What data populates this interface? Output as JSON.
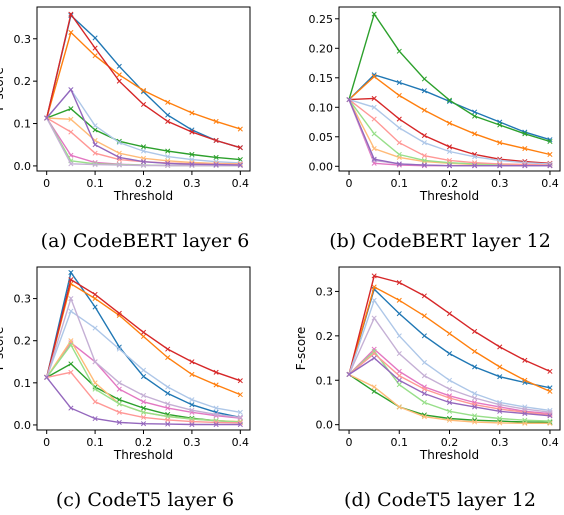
{
  "colors": [
    "#1f77b4",
    "#ff7f0e",
    "#2ca02c",
    "#d62728",
    "#e377c2",
    "#aec7e8",
    "#ffbb78",
    "#98df8a",
    "#ff9896",
    "#c5b0d5",
    "#9467bd"
  ],
  "chart_data": [
    {
      "type": "line",
      "caption": "(a) CodeBERT layer 6",
      "xlabel": "Threshold",
      "ylabel": "F-score",
      "xlim": [
        -0.02,
        0.42
      ],
      "ylim": [
        -0.012,
        0.375
      ],
      "xticks": [
        "0",
        "0.1",
        "0.2",
        "0.3",
        "0.4"
      ],
      "xtick_values": [
        0,
        0.1,
        0.2,
        0.3,
        0.4
      ],
      "yticks": [
        "0.0",
        "0.1",
        "0.2",
        "0.3"
      ],
      "ytick_values": [
        0,
        0.1,
        0.2,
        0.3
      ],
      "grid": false,
      "x": [
        0,
        0.05,
        0.1,
        0.15,
        0.2,
        0.25,
        0.3,
        0.35,
        0.4
      ],
      "series": [
        {
          "color_index": 0,
          "values": [
            0.113,
            0.355,
            0.302,
            0.235,
            0.175,
            0.12,
            0.085,
            0.06,
            0.043
          ]
        },
        {
          "color_index": 1,
          "values": [
            0.113,
            0.315,
            0.26,
            0.215,
            0.178,
            0.15,
            0.125,
            0.105,
            0.087
          ]
        },
        {
          "color_index": 2,
          "values": [
            0.113,
            0.135,
            0.085,
            0.058,
            0.045,
            0.035,
            0.027,
            0.02,
            0.015
          ]
        },
        {
          "color_index": 3,
          "values": [
            0.113,
            0.358,
            0.278,
            0.2,
            0.145,
            0.105,
            0.08,
            0.06,
            0.043
          ]
        },
        {
          "color_index": 4,
          "values": [
            0.113,
            0.025,
            0.008,
            0.004,
            0.002,
            0.001,
            0.001,
            0.001,
            0.001
          ]
        },
        {
          "color_index": 5,
          "values": [
            0.113,
            0.18,
            0.095,
            0.055,
            0.035,
            0.022,
            0.015,
            0.01,
            0.007
          ]
        },
        {
          "color_index": 6,
          "values": [
            0.113,
            0.11,
            0.06,
            0.03,
            0.018,
            0.012,
            0.008,
            0.006,
            0.005
          ]
        },
        {
          "color_index": 7,
          "values": [
            0.113,
            0.012,
            0.005,
            0.003,
            0.002,
            0.001,
            0.001,
            0.001,
            0.001
          ]
        },
        {
          "color_index": 8,
          "values": [
            0.113,
            0.08,
            0.03,
            0.015,
            0.01,
            0.007,
            0.005,
            0.004,
            0.003
          ]
        },
        {
          "color_index": 9,
          "values": [
            0.113,
            0.005,
            0.003,
            0.002,
            0.001,
            0.001,
            0.001,
            0.001,
            0.001
          ]
        },
        {
          "color_index": 10,
          "values": [
            0.113,
            0.18,
            0.05,
            0.02,
            0.01,
            0.006,
            0.004,
            0.003,
            0.002
          ]
        }
      ]
    },
    {
      "type": "line",
      "caption": "(b) CodeBERT layer 12",
      "xlabel": "Threshold",
      "ylabel": "",
      "xlim": [
        -0.02,
        0.42
      ],
      "ylim": [
        -0.008,
        0.27
      ],
      "xticks": [
        "0",
        "0.1",
        "0.2",
        "0.3",
        "0.4"
      ],
      "xtick_values": [
        0,
        0.1,
        0.2,
        0.3,
        0.4
      ],
      "yticks": [
        "0.00",
        "0.05",
        "0.10",
        "0.15",
        "0.20",
        "0.25"
      ],
      "ytick_values": [
        0,
        0.05,
        0.1,
        0.15,
        0.2,
        0.25
      ],
      "grid": false,
      "x": [
        0,
        0.05,
        0.1,
        0.15,
        0.2,
        0.25,
        0.3,
        0.35,
        0.4
      ],
      "series": [
        {
          "color_index": 0,
          "values": [
            0.113,
            0.155,
            0.142,
            0.128,
            0.11,
            0.092,
            0.075,
            0.058,
            0.045
          ]
        },
        {
          "color_index": 1,
          "values": [
            0.113,
            0.152,
            0.12,
            0.095,
            0.073,
            0.055,
            0.04,
            0.03,
            0.02
          ]
        },
        {
          "color_index": 2,
          "values": [
            0.113,
            0.258,
            0.195,
            0.148,
            0.112,
            0.085,
            0.07,
            0.055,
            0.042
          ]
        },
        {
          "color_index": 3,
          "values": [
            0.113,
            0.115,
            0.08,
            0.052,
            0.033,
            0.02,
            0.012,
            0.008,
            0.005
          ]
        },
        {
          "color_index": 4,
          "values": [
            0.113,
            0.005,
            0.002,
            0.001,
            0.001,
            0.001,
            0.001,
            0.001,
            0.001
          ]
        },
        {
          "color_index": 5,
          "values": [
            0.113,
            0.1,
            0.065,
            0.04,
            0.025,
            0.016,
            0.01,
            0.006,
            0.004
          ]
        },
        {
          "color_index": 6,
          "values": [
            0.113,
            0.03,
            0.015,
            0.008,
            0.005,
            0.003,
            0.002,
            0.002,
            0.001
          ]
        },
        {
          "color_index": 7,
          "values": [
            0.113,
            0.055,
            0.02,
            0.01,
            0.006,
            0.004,
            0.003,
            0.002,
            0.002
          ]
        },
        {
          "color_index": 8,
          "values": [
            0.113,
            0.08,
            0.04,
            0.018,
            0.01,
            0.006,
            0.004,
            0.003,
            0.002
          ]
        },
        {
          "color_index": 9,
          "values": [
            0.113,
            0.01,
            0.004,
            0.002,
            0.001,
            0.001,
            0.001,
            0.001,
            0.001
          ]
        },
        {
          "color_index": 10,
          "values": [
            0.113,
            0.012,
            0.004,
            0.002,
            0.001,
            0.001,
            0.001,
            0.001,
            0.001
          ]
        }
      ]
    },
    {
      "type": "line",
      "caption": "(c) CodeT5 layer 6",
      "xlabel": "Threshold",
      "ylabel": "F-score",
      "xlim": [
        -0.02,
        0.42
      ],
      "ylim": [
        -0.012,
        0.375
      ],
      "xticks": [
        "0",
        "0.1",
        "0.2",
        "0.3",
        "0.4"
      ],
      "xtick_values": [
        0,
        0.1,
        0.2,
        0.3,
        0.4
      ],
      "yticks": [
        "0.0",
        "0.1",
        "0.2",
        "0.3"
      ],
      "ytick_values": [
        0,
        0.1,
        0.2,
        0.3
      ],
      "grid": false,
      "x": [
        0,
        0.05,
        0.1,
        0.15,
        0.2,
        0.25,
        0.3,
        0.35,
        0.4
      ],
      "series": [
        {
          "color_index": 0,
          "values": [
            0.113,
            0.362,
            0.28,
            0.185,
            0.115,
            0.075,
            0.048,
            0.03,
            0.018
          ]
        },
        {
          "color_index": 1,
          "values": [
            0.113,
            0.335,
            0.3,
            0.26,
            0.21,
            0.16,
            0.12,
            0.095,
            0.072
          ]
        },
        {
          "color_index": 2,
          "values": [
            0.113,
            0.145,
            0.09,
            0.06,
            0.04,
            0.025,
            0.016,
            0.01,
            0.007
          ]
        },
        {
          "color_index": 3,
          "values": [
            0.113,
            0.345,
            0.31,
            0.265,
            0.22,
            0.18,
            0.15,
            0.125,
            0.105
          ]
        },
        {
          "color_index": 4,
          "values": [
            0.113,
            0.195,
            0.15,
            0.085,
            0.055,
            0.04,
            0.03,
            0.022,
            0.016
          ]
        },
        {
          "color_index": 5,
          "values": [
            0.113,
            0.27,
            0.23,
            0.18,
            0.13,
            0.09,
            0.06,
            0.04,
            0.03
          ]
        },
        {
          "color_index": 6,
          "values": [
            0.113,
            0.2,
            0.1,
            0.05,
            0.03,
            0.02,
            0.014,
            0.01,
            0.008
          ]
        },
        {
          "color_index": 7,
          "values": [
            0.113,
            0.19,
            0.085,
            0.05,
            0.03,
            0.02,
            0.014,
            0.01,
            0.007
          ]
        },
        {
          "color_index": 8,
          "values": [
            0.113,
            0.125,
            0.055,
            0.03,
            0.018,
            0.012,
            0.008,
            0.006,
            0.005
          ]
        },
        {
          "color_index": 9,
          "values": [
            0.113,
            0.3,
            0.15,
            0.1,
            0.07,
            0.05,
            0.035,
            0.025,
            0.018
          ]
        },
        {
          "color_index": 10,
          "values": [
            0.113,
            0.04,
            0.015,
            0.006,
            0.003,
            0.002,
            0.001,
            0.001,
            0.001
          ]
        }
      ]
    },
    {
      "type": "line",
      "caption": "(d) CodeT5 layer 12",
      "xlabel": "Threshold",
      "ylabel": "F-score",
      "xlim": [
        -0.02,
        0.42
      ],
      "ylim": [
        -0.012,
        0.355
      ],
      "xticks": [
        "0",
        "0.1",
        "0.2",
        "0.3",
        "0.4"
      ],
      "xtick_values": [
        0,
        0.1,
        0.2,
        0.3,
        0.4
      ],
      "yticks": [
        "0.0",
        "0.1",
        "0.2",
        "0.3"
      ],
      "ytick_values": [
        0,
        0.1,
        0.2,
        0.3
      ],
      "grid": false,
      "x": [
        0,
        0.05,
        0.1,
        0.15,
        0.2,
        0.25,
        0.3,
        0.35,
        0.4
      ],
      "series": [
        {
          "color_index": 0,
          "values": [
            0.113,
            0.305,
            0.25,
            0.2,
            0.16,
            0.13,
            0.108,
            0.095,
            0.083
          ]
        },
        {
          "color_index": 1,
          "values": [
            0.113,
            0.31,
            0.28,
            0.245,
            0.205,
            0.165,
            0.13,
            0.1,
            0.075
          ]
        },
        {
          "color_index": 2,
          "values": [
            0.113,
            0.075,
            0.04,
            0.022,
            0.014,
            0.01,
            0.008,
            0.006,
            0.005
          ]
        },
        {
          "color_index": 3,
          "values": [
            0.113,
            0.335,
            0.32,
            0.29,
            0.25,
            0.21,
            0.175,
            0.145,
            0.12
          ]
        },
        {
          "color_index": 4,
          "values": [
            0.113,
            0.17,
            0.12,
            0.085,
            0.065,
            0.05,
            0.04,
            0.03,
            0.025
          ]
        },
        {
          "color_index": 5,
          "values": [
            0.113,
            0.28,
            0.2,
            0.14,
            0.1,
            0.07,
            0.05,
            0.04,
            0.032
          ]
        },
        {
          "color_index": 6,
          "values": [
            0.113,
            0.085,
            0.04,
            0.018,
            0.01,
            0.006,
            0.004,
            0.003,
            0.003
          ]
        },
        {
          "color_index": 7,
          "values": [
            0.113,
            0.165,
            0.09,
            0.05,
            0.03,
            0.02,
            0.014,
            0.01,
            0.008
          ]
        },
        {
          "color_index": 8,
          "values": [
            0.113,
            0.16,
            0.11,
            0.08,
            0.06,
            0.045,
            0.035,
            0.028,
            0.022
          ]
        },
        {
          "color_index": 9,
          "values": [
            0.113,
            0.24,
            0.16,
            0.11,
            0.08,
            0.06,
            0.045,
            0.035,
            0.028
          ]
        },
        {
          "color_index": 10,
          "values": [
            0.113,
            0.15,
            0.1,
            0.07,
            0.05,
            0.04,
            0.03,
            0.025,
            0.02
          ]
        }
      ]
    }
  ]
}
